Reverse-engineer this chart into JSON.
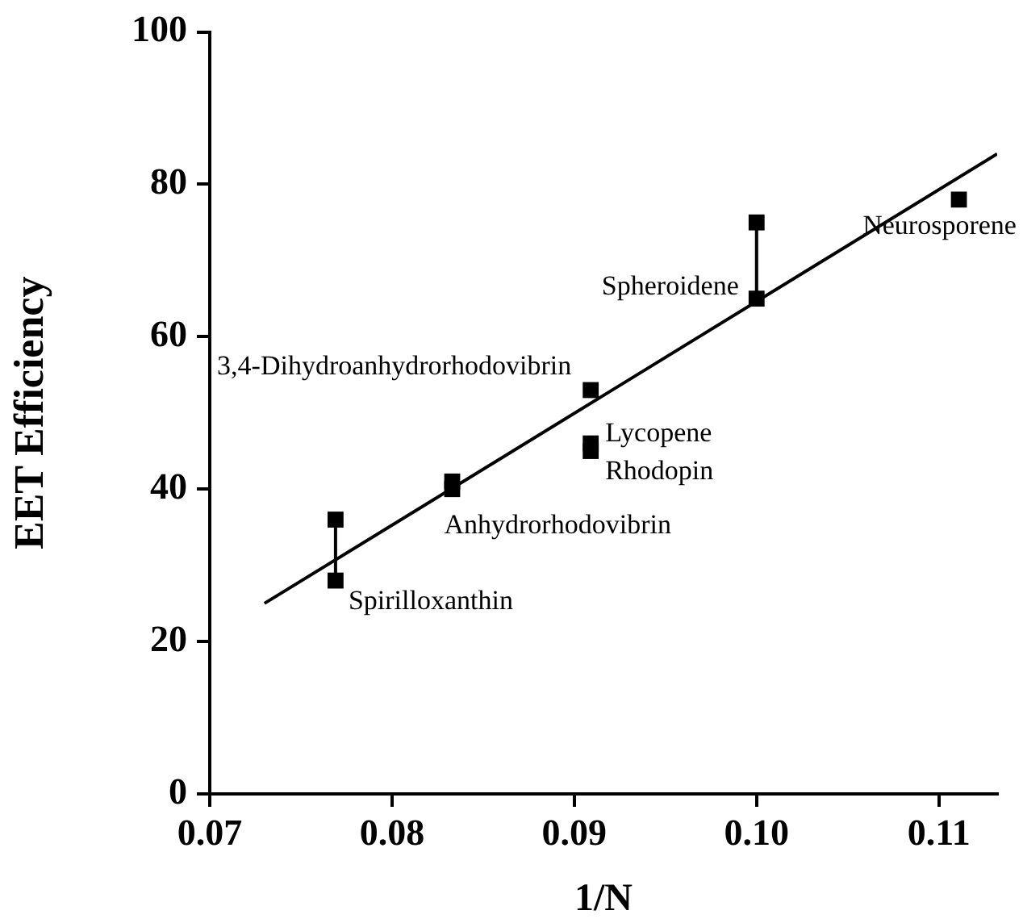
{
  "chart_data": {
    "type": "scatter",
    "xlabel": "1/N",
    "ylabel": "EET Efficiency",
    "xlim": [
      0.07,
      0.1132
    ],
    "xticks": [
      0.07,
      0.08,
      0.09,
      {
        "value": 0.1,
        "label": "0.10"
      },
      0.11
    ],
    "ylim": [
      0,
      100
    ],
    "yticks": [
      0,
      20,
      40,
      60,
      80,
      100
    ],
    "grid": false,
    "legend": false,
    "marker": "square",
    "series": [
      {
        "type": "scatter",
        "color": "#000000",
        "x": [
          0.0769,
          0.0769,
          0.0833,
          0.0833,
          0.0909,
          0.0909,
          0.0909,
          0.1,
          0.1,
          0.1111
        ],
        "values": [
          36,
          28,
          41,
          40,
          53,
          46,
          45,
          75,
          65,
          78
        ]
      },
      {
        "type": "line",
        "color": "#000000",
        "marker": "none",
        "x": [
          0.0769,
          0.0769
        ],
        "values": [
          36,
          28
        ]
      },
      {
        "type": "line",
        "color": "#000000",
        "marker": "none",
        "x": [
          0.1,
          0.1
        ],
        "values": [
          75,
          65
        ]
      },
      {
        "type": "line",
        "color": "#000000",
        "marker": "none",
        "x": [
          0.073,
          0.1132
        ],
        "values": [
          25,
          84
        ]
      }
    ],
    "annotations": [
      {
        "text": "3,4-Dihydroanhydrorhodovibrin",
        "x": 0.0909,
        "y": 53
      },
      {
        "text": "Lycopene",
        "x": 0.0909,
        "y": 46
      },
      {
        "text": "Rhodopin",
        "x": 0.0909,
        "y": 45
      },
      {
        "text": "Anhydrorhodovibrin",
        "x": 0.0833,
        "y": 40
      },
      {
        "text": "Spirilloxanthin",
        "x": 0.0769,
        "y": 28
      },
      {
        "text": "Spheroidene",
        "x": 0.1,
        "y": 65
      },
      {
        "text": "Neurosporene",
        "x": 0.1111,
        "y": 78
      }
    ]
  }
}
